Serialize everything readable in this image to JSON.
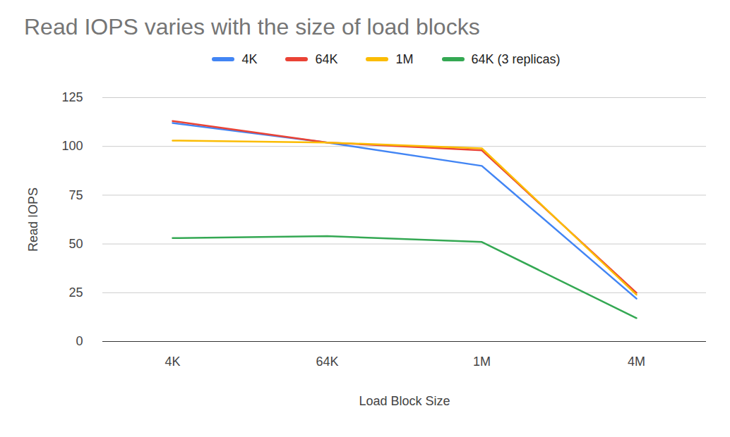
{
  "chart_data": {
    "type": "line",
    "title": "Read IOPS varies with the size of load blocks",
    "x_label": "Load Block Size",
    "y_label": "Read IOPS",
    "categories": [
      "4K",
      "64K",
      "1M",
      "4M"
    ],
    "series": [
      {
        "name": "4K",
        "color": "#4285f4",
        "values": [
          112,
          102,
          90,
          22
        ]
      },
      {
        "name": "64K",
        "color": "#ea4335",
        "values": [
          113,
          102,
          98,
          25
        ]
      },
      {
        "name": "1M",
        "color": "#fbbc04",
        "values": [
          103,
          102,
          99,
          24
        ]
      },
      {
        "name": "64K (3 replicas)",
        "color": "#34a853",
        "values": [
          53,
          54,
          51,
          12
        ]
      }
    ],
    "ylim": [
      0,
      125
    ],
    "yticks": [
      0,
      25,
      50,
      75,
      100,
      125
    ],
    "grid": true,
    "legend": "top"
  }
}
